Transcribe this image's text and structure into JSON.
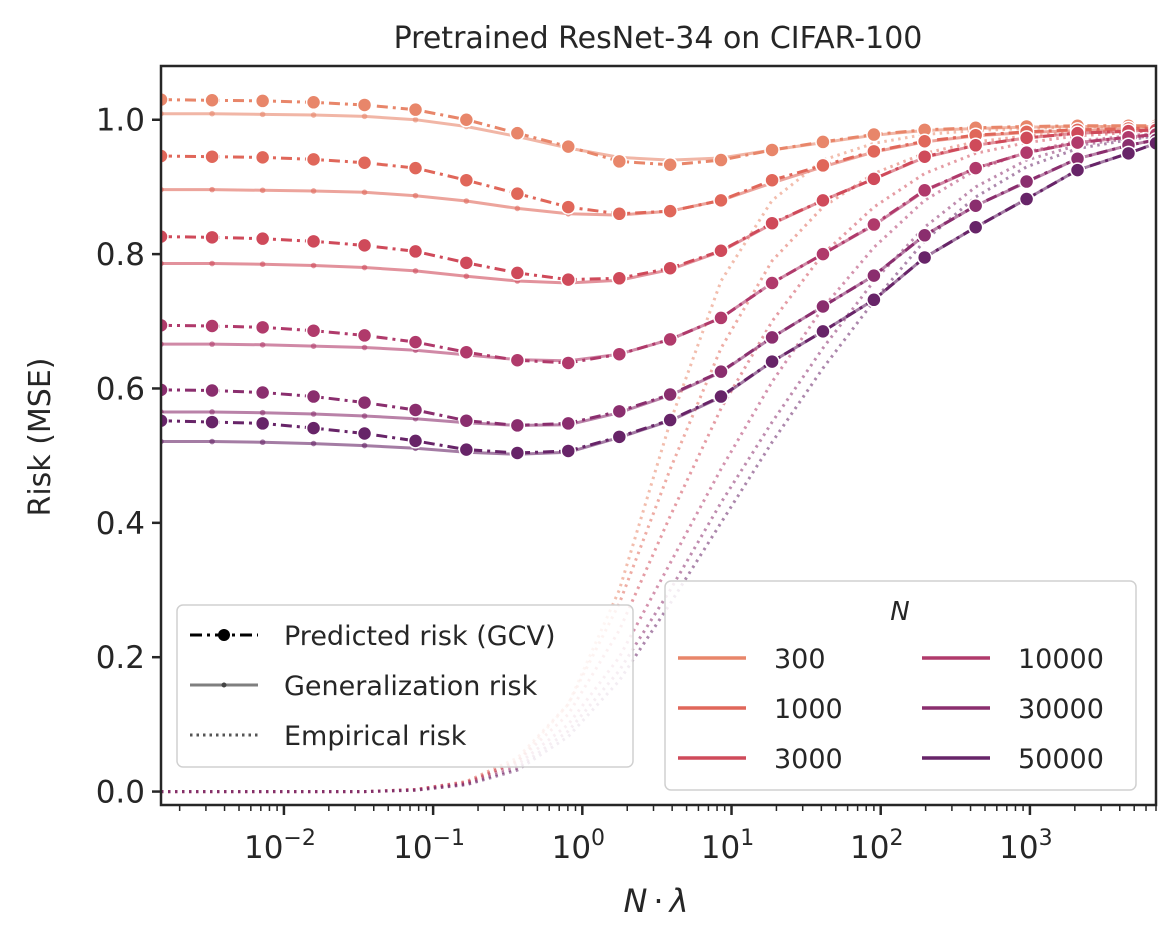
{
  "chart_data": {
    "type": "line",
    "title": "Pretrained ResNet-34 on CIFAR-100",
    "xlabel_main": "N",
    "xlabel_dot": "·",
    "xlabel_lambda": "λ",
    "ylabel": "Risk (MSE)",
    "xscale": "log",
    "xlim": [
      0.0015,
      7000
    ],
    "ylim": [
      -0.02,
      1.08
    ],
    "x_tick_base": "10",
    "x_ticks": [
      {
        "exp": -2,
        "label": "−2"
      },
      {
        "exp": -1,
        "label": "−1"
      },
      {
        "exp": 0,
        "label": "0"
      },
      {
        "exp": 1,
        "label": "1"
      },
      {
        "exp": 2,
        "label": "2"
      },
      {
        "exp": 3,
        "label": "3"
      }
    ],
    "y_ticks": [
      {
        "value": 0.0,
        "label": "0.0"
      },
      {
        "value": 0.2,
        "label": "0.2"
      },
      {
        "value": 0.4,
        "label": "0.4"
      },
      {
        "value": 0.6,
        "label": "0.6"
      },
      {
        "value": 0.8,
        "label": "0.8"
      },
      {
        "value": 1.0,
        "label": "1.0"
      }
    ],
    "lambda_grid": [
      0.0015,
      0.0033,
      0.0072,
      0.0158,
      0.0347,
      0.0762,
      0.167,
      0.367,
      0.805,
      1.77,
      3.88,
      8.5,
      18.7,
      41,
      90,
      197,
      433,
      950,
      2085,
      4577,
      7000
    ],
    "series": [
      {
        "name": "300",
        "color": "#e8866a",
        "gcv": [
          1.03,
          1.029,
          1.028,
          1.026,
          1.022,
          1.015,
          1.0,
          0.98,
          0.96,
          0.938,
          0.933,
          0.94,
          0.955,
          0.967,
          0.978,
          0.985,
          0.988,
          0.99,
          0.991,
          0.991,
          0.991
        ],
        "gen": [
          1.009,
          1.009,
          1.008,
          1.007,
          1.005,
          1.0,
          0.99,
          0.975,
          0.958,
          0.944,
          0.94,
          0.943,
          0.955,
          0.966,
          0.977,
          0.984,
          0.987,
          0.989,
          0.99,
          0.99,
          0.99
        ],
        "emp": [
          0.0,
          0.0,
          0.0,
          0.0,
          0.0,
          0.002,
          0.012,
          0.045,
          0.13,
          0.3,
          0.55,
          0.76,
          0.88,
          0.94,
          0.965,
          0.978,
          0.984,
          0.987,
          0.989,
          0.99,
          0.99
        ]
      },
      {
        "name": "1000",
        "color": "#e0675a",
        "gcv": [
          0.946,
          0.945,
          0.944,
          0.941,
          0.936,
          0.928,
          0.91,
          0.89,
          0.87,
          0.86,
          0.864,
          0.88,
          0.91,
          0.932,
          0.953,
          0.968,
          0.977,
          0.982,
          0.985,
          0.987,
          0.988
        ],
        "gen": [
          0.896,
          0.896,
          0.895,
          0.894,
          0.892,
          0.887,
          0.879,
          0.868,
          0.86,
          0.858,
          0.864,
          0.88,
          0.906,
          0.93,
          0.952,
          0.967,
          0.976,
          0.981,
          0.984,
          0.986,
          0.987
        ],
        "emp": [
          0.0,
          0.0,
          0.0,
          0.0,
          0.0,
          0.003,
          0.015,
          0.05,
          0.13,
          0.28,
          0.48,
          0.66,
          0.79,
          0.87,
          0.92,
          0.95,
          0.967,
          0.976,
          0.981,
          0.984,
          0.986
        ]
      },
      {
        "name": "3000",
        "color": "#cf4a5a",
        "gcv": [
          0.826,
          0.825,
          0.823,
          0.819,
          0.813,
          0.804,
          0.787,
          0.772,
          0.762,
          0.764,
          0.779,
          0.805,
          0.846,
          0.88,
          0.912,
          0.945,
          0.962,
          0.973,
          0.98,
          0.983,
          0.985
        ],
        "gen": [
          0.786,
          0.786,
          0.785,
          0.783,
          0.78,
          0.775,
          0.767,
          0.76,
          0.757,
          0.761,
          0.777,
          0.804,
          0.845,
          0.88,
          0.912,
          0.944,
          0.962,
          0.973,
          0.98,
          0.983,
          0.985
        ],
        "emp": [
          0.0,
          0.0,
          0.0,
          0.0,
          0.0,
          0.003,
          0.014,
          0.045,
          0.115,
          0.24,
          0.41,
          0.57,
          0.7,
          0.8,
          0.87,
          0.92,
          0.95,
          0.966,
          0.976,
          0.981,
          0.984
        ]
      },
      {
        "name": "10000",
        "color": "#b03a6b",
        "gcv": [
          0.694,
          0.693,
          0.691,
          0.686,
          0.679,
          0.669,
          0.654,
          0.642,
          0.638,
          0.651,
          0.673,
          0.705,
          0.757,
          0.8,
          0.844,
          0.895,
          0.928,
          0.951,
          0.966,
          0.974,
          0.978
        ],
        "gen": [
          0.666,
          0.666,
          0.665,
          0.663,
          0.661,
          0.657,
          0.65,
          0.643,
          0.641,
          0.651,
          0.673,
          0.705,
          0.757,
          0.8,
          0.843,
          0.894,
          0.928,
          0.951,
          0.966,
          0.974,
          0.978
        ],
        "emp": [
          0.0,
          0.0,
          0.0,
          0.0,
          0.0,
          0.003,
          0.013,
          0.04,
          0.1,
          0.2,
          0.34,
          0.48,
          0.61,
          0.72,
          0.81,
          0.88,
          0.925,
          0.952,
          0.968,
          0.976,
          0.98
        ]
      },
      {
        "name": "30000",
        "color": "#8a2e6e",
        "gcv": [
          0.598,
          0.597,
          0.594,
          0.588,
          0.579,
          0.568,
          0.552,
          0.545,
          0.548,
          0.566,
          0.591,
          0.625,
          0.676,
          0.722,
          0.768,
          0.828,
          0.872,
          0.908,
          0.942,
          0.962,
          0.97
        ],
        "gen": [
          0.565,
          0.565,
          0.564,
          0.562,
          0.559,
          0.555,
          0.549,
          0.545,
          0.546,
          0.564,
          0.59,
          0.624,
          0.676,
          0.722,
          0.768,
          0.828,
          0.872,
          0.907,
          0.942,
          0.962,
          0.97
        ],
        "emp": [
          0.0,
          0.0,
          0.0,
          0.0,
          0.0,
          0.002,
          0.011,
          0.035,
          0.09,
          0.18,
          0.3,
          0.43,
          0.55,
          0.66,
          0.76,
          0.84,
          0.9,
          0.94,
          0.962,
          0.972,
          0.977
        ]
      },
      {
        "name": "50000",
        "color": "#672468",
        "gcv": [
          0.552,
          0.55,
          0.548,
          0.541,
          0.533,
          0.522,
          0.509,
          0.504,
          0.507,
          0.528,
          0.553,
          0.588,
          0.64,
          0.685,
          0.732,
          0.795,
          0.84,
          0.882,
          0.925,
          0.95,
          0.965
        ],
        "gen": [
          0.521,
          0.521,
          0.52,
          0.518,
          0.515,
          0.511,
          0.505,
          0.502,
          0.505,
          0.527,
          0.552,
          0.587,
          0.64,
          0.685,
          0.732,
          0.795,
          0.84,
          0.882,
          0.925,
          0.95,
          0.965
        ],
        "emp": [
          0.0,
          0.0,
          0.0,
          0.0,
          0.0,
          0.002,
          0.01,
          0.032,
          0.082,
          0.165,
          0.28,
          0.4,
          0.52,
          0.63,
          0.73,
          0.82,
          0.885,
          0.93,
          0.957,
          0.97,
          0.976
        ]
      }
    ],
    "legend_styles": {
      "title": "",
      "items": [
        {
          "label": "Predicted risk (GCV)",
          "style": "dashdot-marker"
        },
        {
          "label": "Generalization risk",
          "style": "solid-small-marker"
        },
        {
          "label": "Empirical risk",
          "style": "dotted"
        }
      ]
    },
    "legend_N": {
      "title": "N",
      "items": [
        "300",
        "1000",
        "3000",
        "10000",
        "30000",
        "50000"
      ]
    }
  }
}
